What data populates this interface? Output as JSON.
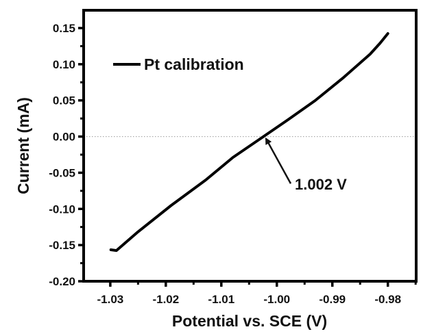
{
  "chart_data": {
    "type": "line",
    "title": "",
    "xlabel": "Potential vs. SCE (V)",
    "ylabel": "Current (mA)",
    "xlim": [
      -1.0348,
      -0.9749
    ],
    "ylim": [
      -0.2,
      0.1746
    ],
    "x_ticks": [
      -1.03,
      -1.02,
      -1.01,
      -1.0,
      -0.99,
      -0.98
    ],
    "x_tick_labels": [
      "-1.03",
      "-1.02",
      "-1.01",
      "-1.00",
      "-0.99",
      "-0.98"
    ],
    "x_minor_ticks": [
      -1.025,
      -1.015,
      -1.005,
      -0.995,
      -0.985,
      -0.975
    ],
    "y_ticks": [
      0.15,
      0.1,
      0.05,
      0.0,
      -0.05,
      -0.1,
      -0.15,
      -0.2
    ],
    "y_tick_labels": [
      "0.15",
      "0.10",
      "0.05",
      "0.00",
      "-0.05",
      "-0.10",
      "-0.15",
      "-0.20"
    ],
    "y_minor_ticks": [
      0.125,
      0.075,
      0.025,
      -0.025,
      -0.075,
      -0.125,
      -0.175
    ],
    "grid": false,
    "reference_line": {
      "y": 0.0,
      "style": "dotted",
      "color": "#999999"
    },
    "legend": {
      "position": "top-left",
      "entries": [
        "Pt calibration"
      ]
    },
    "series": [
      {
        "name": "Pt calibration",
        "color": "#000000",
        "x": [
          -1.0299,
          -1.0289,
          -1.0252,
          -1.019,
          -1.0128,
          -1.0079,
          -1.0023,
          -0.998,
          -0.9931,
          -0.9881,
          -0.9832,
          -0.9814,
          -0.98
        ],
        "y": [
          -0.1565,
          -0.1575,
          -0.1329,
          -0.095,
          -0.06,
          -0.0288,
          0.0005,
          0.0232,
          0.0497,
          0.0809,
          0.114,
          0.1292,
          0.1424
        ]
      }
    ],
    "annotations": [
      {
        "text": "1.002 V",
        "arrow_to": {
          "x": -1.0022,
          "y": 0.0
        },
        "text_at": {
          "x": -0.9975,
          "y": -0.065
        }
      }
    ]
  }
}
